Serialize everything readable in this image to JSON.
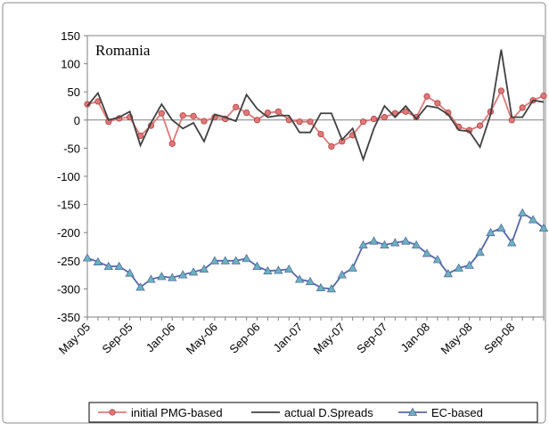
{
  "chart_data": {
    "type": "line",
    "title": "Romania",
    "categories": [
      "May-05",
      null,
      null,
      null,
      "Sep-05",
      null,
      null,
      null,
      "Jan-06",
      null,
      null,
      null,
      "May-06",
      null,
      null,
      null,
      "Sep-06",
      null,
      null,
      null,
      "Jan-07",
      null,
      null,
      null,
      "May-07",
      null,
      null,
      null,
      "Sep-07",
      null,
      null,
      null,
      "Jan-08",
      null,
      null,
      null,
      "May-08",
      null,
      null,
      null,
      "Sep-08",
      null,
      null,
      null
    ],
    "series": [
      {
        "name": "initial PMG-based",
        "color": "#e07878",
        "marker": "circle",
        "values": [
          28,
          33,
          -3,
          3,
          5,
          -28,
          -10,
          12,
          -42,
          8,
          7,
          -2,
          5,
          2,
          23,
          13,
          0,
          13,
          15,
          0,
          -3,
          -3,
          -25,
          -47,
          -38,
          -27,
          -3,
          2,
          5,
          12,
          15,
          5,
          42,
          30,
          13,
          -12,
          -18,
          -10,
          15,
          52,
          0,
          22,
          35,
          43
        ]
      },
      {
        "name": "actual D.Spreads",
        "color": "#404040",
        "marker": "none",
        "values": [
          25,
          48,
          0,
          5,
          15,
          -45,
          -5,
          28,
          0,
          -15,
          -5,
          -38,
          10,
          5,
          -2,
          45,
          20,
          5,
          8,
          8,
          -22,
          -22,
          12,
          12,
          -35,
          -15,
          -70,
          -15,
          25,
          5,
          25,
          2,
          25,
          22,
          10,
          -18,
          -20,
          -48,
          10,
          125,
          5,
          5,
          35,
          32
        ]
      },
      {
        "name": "EC-based",
        "color": "#5468a8",
        "marker": "triangle",
        "values": [
          -245,
          -252,
          -260,
          -260,
          -272,
          -297,
          -283,
          -278,
          -280,
          -275,
          -270,
          -265,
          -250,
          -250,
          -250,
          -246,
          -260,
          -268,
          -267,
          -265,
          -283,
          -287,
          -298,
          -300,
          -275,
          -263,
          -222,
          -215,
          -222,
          -218,
          -215,
          -222,
          -237,
          -248,
          -273,
          -263,
          -258,
          -235,
          -200,
          -192,
          -218,
          -165,
          -177,
          -192
        ]
      }
    ],
    "ylim": [
      -350,
      150
    ],
    "yticks": [
      -350,
      -300,
      -250,
      -200,
      -150,
      -100,
      -50,
      0,
      50,
      100,
      150
    ],
    "legend": "bottom"
  }
}
